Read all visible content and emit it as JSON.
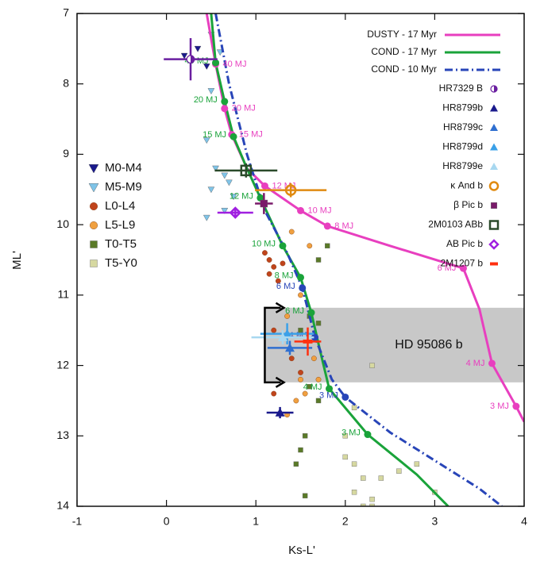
{
  "chart_data": {
    "type": "scatter",
    "xlabel": "Ks-L'",
    "ylabel": "ML'",
    "xlim": [
      -1,
      4
    ],
    "ylim": [
      7,
      14
    ],
    "y_inverted": true,
    "xticks": [
      -1,
      0,
      1,
      2,
      3,
      4
    ],
    "yticks": [
      7,
      8,
      9,
      10,
      11,
      12,
      13,
      14
    ],
    "band": {
      "label": "HD 95086 b",
      "x": 1.1,
      "ylim": [
        11.18,
        12.24
      ],
      "color": "#c8c8c8"
    },
    "models": [
      {
        "name": "DUSTY - 17 Myr",
        "color": "#e83fbf",
        "dash": "solid",
        "x": [
          0.45,
          0.55,
          0.65,
          0.73,
          0.9,
          1.1,
          1.5,
          1.8,
          2.5,
          3.32,
          3.5,
          3.64,
          3.91,
          4.0
        ],
        "values": [
          7,
          7.72,
          8.35,
          8.72,
          9.2,
          9.45,
          9.8,
          10.02,
          10.3,
          10.62,
          11.2,
          11.97,
          12.58,
          12.8
        ],
        "dots_x": [
          0.55,
          0.65,
          0.73,
          1.1,
          1.5,
          1.8,
          3.32,
          3.64,
          3.91
        ],
        "dots_y": [
          7.72,
          8.35,
          8.72,
          9.45,
          9.8,
          10.02,
          10.62,
          11.97,
          12.58
        ],
        "dot_labels": [
          "40 MJ",
          "20 MJ",
          "15 MJ",
          "12 MJ",
          "10 MJ",
          "8 MJ",
          "6 MJ",
          "4 MJ",
          "3 MJ"
        ]
      },
      {
        "name": "COND - 17 Myr",
        "color": "#1aa33a",
        "dash": "solid",
        "x": [
          0.5,
          0.55,
          0.65,
          0.75,
          0.9,
          1.05,
          1.3,
          1.5,
          1.62,
          1.72,
          1.82,
          2.25,
          2.8,
          3.15
        ],
        "values": [
          7,
          7.7,
          8.25,
          8.75,
          9.2,
          9.62,
          10.3,
          10.75,
          11.25,
          11.8,
          12.33,
          12.98,
          13.55,
          14
        ],
        "dots_x": [
          0.55,
          0.65,
          0.75,
          1.05,
          1.3,
          1.5,
          1.62,
          1.82,
          2.25
        ],
        "dots_y": [
          7.7,
          8.25,
          8.75,
          9.62,
          10.3,
          10.75,
          11.25,
          12.33,
          12.98
        ],
        "dot_labels": [
          "40 MJ",
          "20 MJ",
          "15 MJ",
          "12 MJ",
          "10 MJ",
          "8 MJ",
          "6 MJ",
          "4 MJ",
          "3 MJ"
        ]
      },
      {
        "name": "COND - 10 Myr",
        "color": "#2845b8",
        "dash": "dashdot",
        "x": [
          0.55,
          0.7,
          0.9,
          1.1,
          1.35,
          1.52,
          1.66,
          1.85,
          2.0,
          2.5,
          3.0,
          3.5,
          3.75
        ],
        "values": [
          7,
          8.0,
          9.0,
          9.8,
          10.4,
          10.9,
          11.6,
          12.2,
          12.45,
          12.95,
          13.35,
          13.75,
          14
        ],
        "dots_x": [
          1.52,
          1.66,
          2.0
        ],
        "dots_y": [
          10.9,
          11.6,
          12.45
        ],
        "dot_labels": [
          "6 MJ",
          "4 MJ",
          "3 MJ"
        ]
      }
    ],
    "field": [
      {
        "name": "M0-M4",
        "color": "#1a1a8c",
        "marker": "tri-down",
        "x": [
          0.2,
          0.35,
          0.45
        ],
        "values": [
          7.6,
          7.5,
          7.75
        ]
      },
      {
        "name": "M5-M9",
        "color": "#7fc4e8",
        "marker": "tri-down",
        "x": [
          0.5,
          0.6,
          0.5,
          0.45,
          0.55,
          0.65,
          0.7,
          0.5,
          0.75,
          0.65,
          0.45
        ],
        "values": [
          7.3,
          7.55,
          8.1,
          8.8,
          9.2,
          9.3,
          9.4,
          9.5,
          9.6,
          9.8,
          9.9
        ]
      },
      {
        "name": "L0-L4",
        "color": "#c0441c",
        "marker": "circle",
        "x": [
          1.1,
          1.15,
          1.2,
          1.3,
          1.25,
          1.15,
          1.2,
          1.4,
          1.5,
          1.2
        ],
        "values": [
          10.4,
          10.5,
          10.6,
          10.55,
          10.8,
          10.7,
          11.5,
          11.9,
          12.1,
          12.4
        ]
      },
      {
        "name": "L5-L9",
        "color": "#f0a040",
        "marker": "circle",
        "x": [
          1.4,
          1.6,
          1.5,
          1.35,
          1.65,
          1.5,
          1.55,
          1.35,
          1.45,
          1.7
        ],
        "values": [
          10.1,
          10.3,
          11.0,
          11.3,
          11.9,
          12.2,
          12.4,
          12.7,
          12.5,
          12.2
        ]
      },
      {
        "name": "T0-T5",
        "color": "#5a7a28",
        "marker": "square",
        "x": [
          1.8,
          1.7,
          1.6,
          1.7,
          1.5,
          1.6,
          1.7,
          1.55,
          1.5,
          1.45,
          1.55
        ],
        "values": [
          10.3,
          10.5,
          11.3,
          11.4,
          11.5,
          12.3,
          12.5,
          13.0,
          13.2,
          13.4,
          13.85
        ]
      },
      {
        "name": "T5-Y0",
        "color": "#d6d8a0",
        "marker": "square",
        "x": [
          2.3,
          2.1,
          2.0,
          2.0,
          2.1,
          2.2,
          2.1,
          2.3,
          2.4,
          2.6,
          2.8,
          3.0,
          2.2,
          2.3
        ],
        "values": [
          12.0,
          12.6,
          13.0,
          13.3,
          13.4,
          13.6,
          13.8,
          13.9,
          13.6,
          13.5,
          13.4,
          13.8,
          14.0,
          14.0
        ]
      }
    ],
    "objects": [
      {
        "name": "HR7329 B",
        "color": "#6a1fa0",
        "marker": "half-circle",
        "x": [
          0.27
        ],
        "values": [
          7.65
        ],
        "xerr": [
          0.3
        ],
        "yerr": [
          0.3
        ]
      },
      {
        "name": "HR8799b",
        "color": "#1a1a8c",
        "marker": "tri-up",
        "x": [
          1.27
        ],
        "values": [
          12.67
        ],
        "xerr": [
          0.15
        ],
        "yerr": [
          0.08
        ]
      },
      {
        "name": "HR8799c",
        "color": "#2f6fd0",
        "marker": "tri-up",
        "x": [
          1.38
        ],
        "values": [
          11.75
        ],
        "xerr": [
          0.25
        ],
        "yerr": [
          0.1
        ]
      },
      {
        "name": "HR8799d",
        "color": "#3aa0e8",
        "marker": "tri-up",
        "x": [
          1.35
        ],
        "values": [
          11.55
        ],
        "xerr": [
          0.3
        ],
        "yerr": [
          0.15
        ]
      },
      {
        "name": "HR8799e",
        "color": "#a8d8f0",
        "marker": "tri-up",
        "x": [
          1.3
        ],
        "values": [
          11.6
        ],
        "xerr": [
          0.35
        ],
        "yerr": [
          0.1
        ]
      },
      {
        "name": "κ And b",
        "color": "#e08a10",
        "marker": "circle-open",
        "x": [
          1.39
        ],
        "values": [
          9.51
        ],
        "xerr": [
          0.4
        ],
        "yerr": [
          0.1
        ]
      },
      {
        "name": "β Pic b",
        "color": "#7a1a6a",
        "marker": "square",
        "x": [
          1.09
        ],
        "values": [
          9.7
        ],
        "xerr": [
          0.1
        ],
        "yerr": [
          0.15
        ]
      },
      {
        "name": "2M0103 ABb",
        "color": "#2a4a2a",
        "marker": "square-open",
        "x": [
          0.89
        ],
        "values": [
          9.23
        ],
        "xerr": [
          0.35
        ],
        "yerr": [
          0.1
        ]
      },
      {
        "name": "AB Pic b",
        "color": "#a020e0",
        "marker": "diamond-open",
        "x": [
          0.77
        ],
        "values": [
          9.83
        ],
        "xerr": [
          0.2
        ],
        "yerr": [
          0.05
        ]
      },
      {
        "name": "2M1207 b",
        "color": "#ff3010",
        "marker": "bar",
        "x": [
          1.58
        ],
        "values": [
          11.66
        ],
        "xerr": [
          0.15
        ],
        "yerr": [
          0.2
        ]
      }
    ]
  }
}
